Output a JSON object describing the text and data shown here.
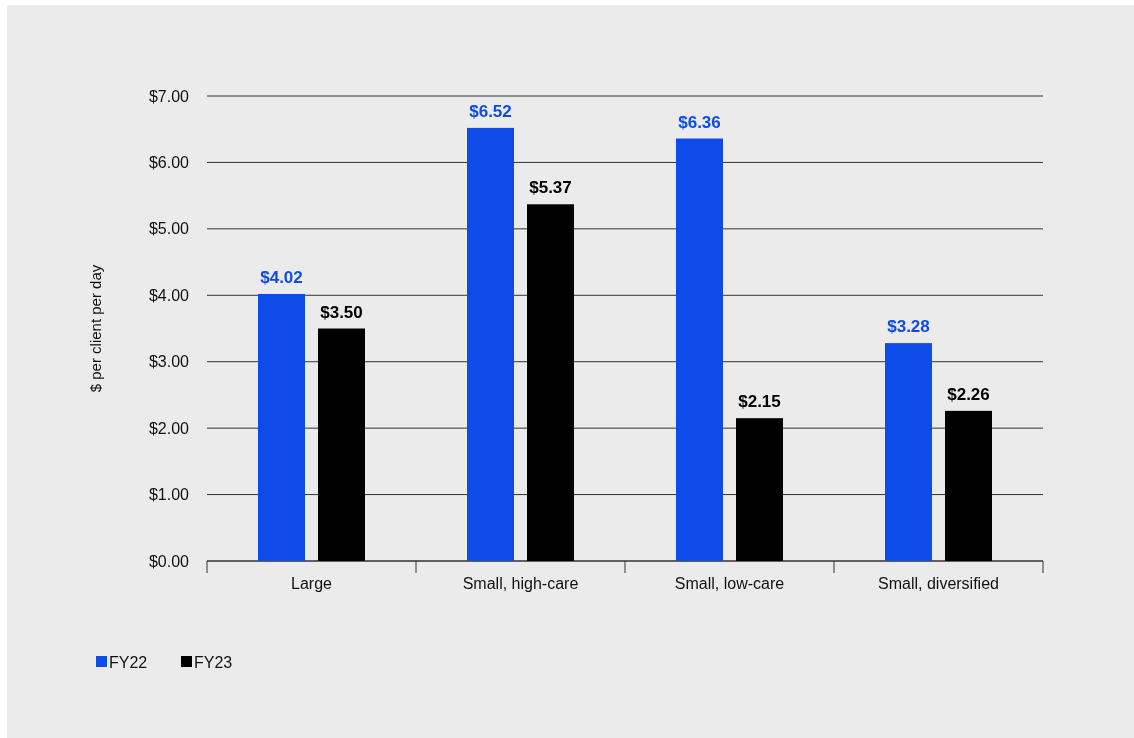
{
  "chart_data": {
    "type": "bar",
    "ylabel": "$ per client per day",
    "categories": [
      "Large",
      "Small, high-care",
      "Small, low-care",
      "Small, diversified"
    ],
    "series": [
      {
        "name": "FY22",
        "color": "#0f4be8",
        "values": [
          4.02,
          6.52,
          6.36,
          3.28
        ],
        "value_labels": [
          "$4.02",
          "$6.52",
          "$6.36",
          "$3.28"
        ]
      },
      {
        "name": "FY23",
        "color": "#000000",
        "values": [
          3.5,
          5.37,
          2.15,
          2.26
        ],
        "value_labels": [
          "$3.50",
          "$5.37",
          "$2.15",
          "$2.26"
        ]
      }
    ],
    "ylim": [
      0,
      7
    ],
    "yticks": [
      {
        "value": 0,
        "label": "$0.00"
      },
      {
        "value": 1,
        "label": "$1.00"
      },
      {
        "value": 2,
        "label": "$2.00"
      },
      {
        "value": 3,
        "label": "$3.00"
      },
      {
        "value": 4,
        "label": "$4.00"
      },
      {
        "value": 5,
        "label": "$5.00"
      },
      {
        "value": 6,
        "label": "$6.00"
      },
      {
        "value": 7,
        "label": "$7.00"
      }
    ],
    "grid": "y",
    "legend": "bottom left"
  }
}
